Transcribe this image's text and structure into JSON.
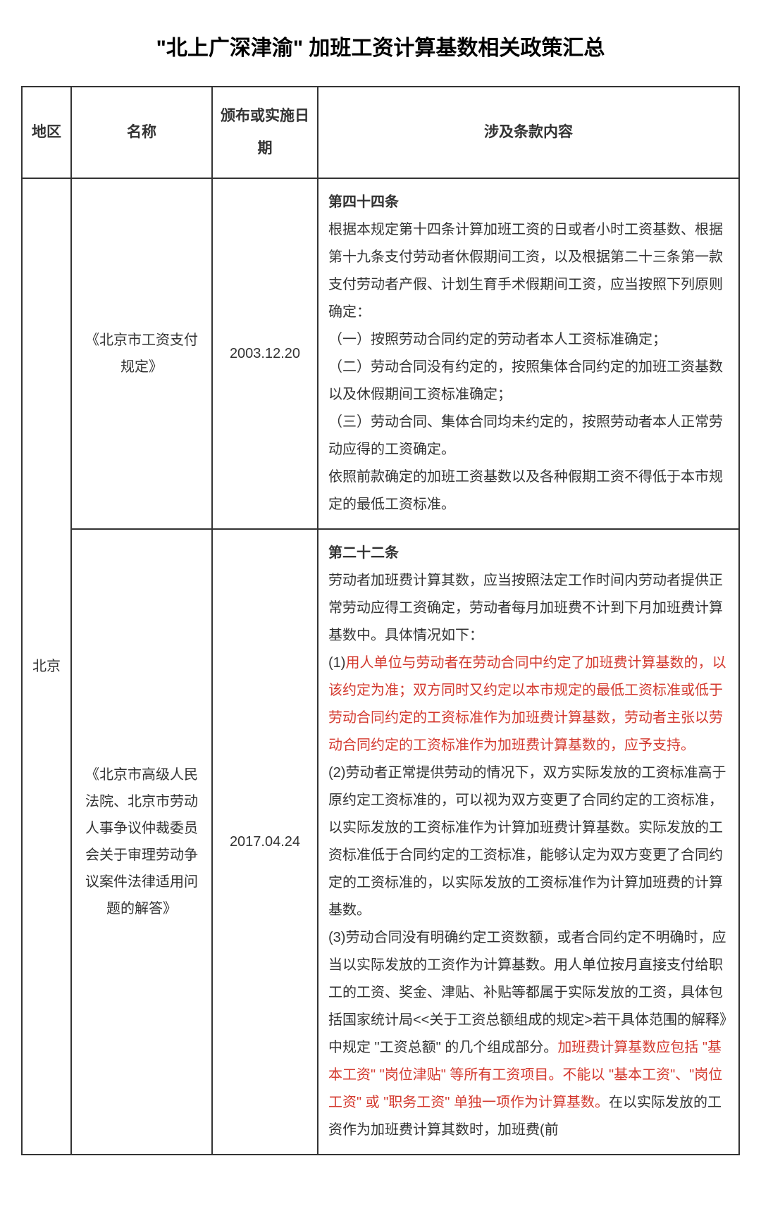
{
  "title": "\"北上广深津渝\" 加班工资计算基数相关政策汇总",
  "headers": {
    "region": "地区",
    "name": "名称",
    "date": "颁布或实施日期",
    "content": "涉及条款内容"
  },
  "rows": [
    {
      "region": "北京",
      "name": "《北京市工资支付规定》",
      "date": "2003.12.20",
      "content_title": "第四十四条",
      "content_lines": [
        "根据本规定第十四条计算加班工资的日或者小时工资基数、根据第十九条支付劳动者休假期间工资，以及根据第二十三条第一款支付劳动者产假、计划生育手术假期间工资，应当按照下列原则确定：",
        "（一）按照劳动合同约定的劳动者本人工资标准确定；",
        "（二）劳动合同没有约定的，按照集体合同约定的加班工资基数以及休假期间工资标准确定；",
        "（三）劳动合同、集体合同均未约定的，按照劳动者本人正常劳动应得的工资确定。",
        "依照前款确定的加班工资基数以及各种假期工资不得低于本市规定的最低工资标准。"
      ]
    },
    {
      "name": "《北京市高级人民法院、北京市劳动人事争议仲裁委员会关于审理劳动争议案件法律适用问题的解答》",
      "date": "2017.04.24",
      "content_title": "第二十二条",
      "content_pre": "劳动者加班费计算其数，应当按照法定工作时间内劳动者提供正常劳动应得工资确定，劳动者每月加班费不计到下月加班费计算基数中。具体情况如下：",
      "p1_prefix": "(1)",
      "p1_hl": "用人单位与劳动者在劳动合同中约定了加班费计算基数的，以该约定为准；双方同时又约定以本市规定的最低工资标准或低于劳动合同约定的工资标准作为加班费计算基数，劳动者主张以劳动合同约定的工资标准作为加班费计算基数的，应予支持。",
      "p2": "(2)劳动者正常提供劳动的情况下，双方实际发放的工资标准高于原约定工资标准的，可以视为双方变更了合同约定的工资标准，以实际发放的工资标准作为计算加班费计算基数。实际发放的工资标准低于合同约定的工资标准，能够认定为双方变更了合同约定的工资标准的，以实际发放的工资标准作为计算加班费的计算基数。",
      "p3_a": "(3)劳动合同没有明确约定工资数额，或者合同约定不明确时，应当以实际发放的工资作为计算基数。用人单位按月直接支付给职工的工资、奖金、津贴、补贴等都属于实际发放的工资，具体包括国家统计局<<关于工资总额组成的规定>若干具体范围的解释》中规定 \"工资总额\" 的几个组成部分。",
      "p3_hl": "加班费计算基数应包括 \"基本工资\" \"岗位津贴\" 等所有工资项目。不能以 \"基本工资\"、\"岗位工资\" 或 \"职务工资\" 单独一项作为计算基数。",
      "p3_b": "在以实际发放的工资作为加班费计算其数时，加班费(前"
    }
  ]
}
